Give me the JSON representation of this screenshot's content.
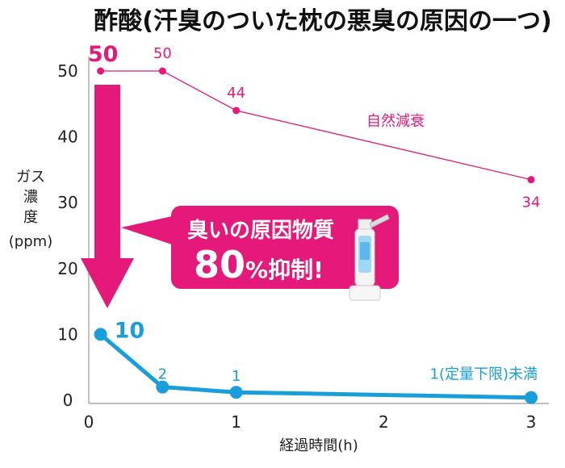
{
  "chart_data": {
    "type": "line",
    "title": "酢酸(汗臭のついた枕の悪臭の原因の一つ)",
    "xlabel": "経過時間(h)",
    "ylabel_lines": [
      "ガス",
      "濃",
      "度",
      "(ppm)"
    ],
    "xlim": [
      0,
      3
    ],
    "ylim": [
      0,
      50
    ],
    "x_ticks": [
      "0",
      "1",
      "2",
      "3"
    ],
    "y_ticks": [
      "0",
      "10",
      "20",
      "30",
      "40",
      "50"
    ],
    "grid": false,
    "series": [
      {
        "name": "自然減衰",
        "color": "#e4197a",
        "points": [
          {
            "x": 0.08,
            "y": 50,
            "label": "50"
          },
          {
            "x": 0.5,
            "y": 50,
            "label": "50"
          },
          {
            "x": 1.0,
            "y": 44,
            "label": "44"
          },
          {
            "x": 3.0,
            "y": 33.5,
            "label": "34"
          }
        ]
      },
      {
        "color": "#1a9ed9",
        "points": [
          {
            "x": 0.08,
            "y": 10,
            "label": "10"
          },
          {
            "x": 0.5,
            "y": 2,
            "label": "2"
          },
          {
            "x": 1.0,
            "y": 1.2,
            "label": "1"
          },
          {
            "x": 3.0,
            "y": 0.4,
            "label": "1(定量下限)未満"
          }
        ]
      }
    ],
    "callout": {
      "line1": "臭いの原因物質",
      "line2_num": "80",
      "line2_unit": "%抑制!",
      "color": "#e4197a"
    },
    "product_icon": "spray-bottle-device"
  }
}
